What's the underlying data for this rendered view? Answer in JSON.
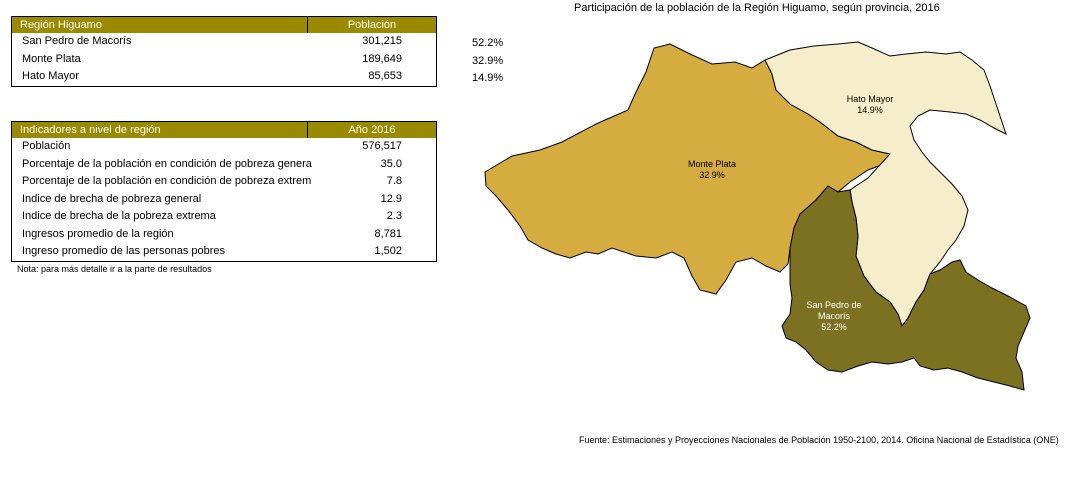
{
  "table1": {
    "header": {
      "col1": "Región Higuamo",
      "col2": "Población"
    },
    "rows": [
      {
        "label": "San Pedro de Macorís",
        "value": "301,215",
        "pct": "52.2%"
      },
      {
        "label": "Monte Plata",
        "value": "189,649",
        "pct": "32.9%"
      },
      {
        "label": "Hato Mayor",
        "value": "85,653",
        "pct": "14.9%"
      }
    ]
  },
  "table2": {
    "header": {
      "col1": "Indicadores a nivel de región",
      "col2": "Año 2016"
    },
    "rows": [
      {
        "label": "Población",
        "value": "576,517"
      },
      {
        "label": "Porcentaje de la población en condición de pobreza genera",
        "value": "35.0"
      },
      {
        "label": "Porcentaje de la población en condición de pobreza extrem",
        "value": "7.8"
      },
      {
        "label": "Indice de brecha de pobreza general",
        "value": "12.9"
      },
      {
        "label": "Indice de  brecha de la pobreza extrema",
        "value": "2.3"
      },
      {
        "label": "Ingresos promedio de la región",
        "value": "8,781"
      },
      {
        "label": "Ingreso promedio de las personas pobres",
        "value": "1,502"
      }
    ]
  },
  "note": "Nota: para más detalle ir a la parte de resultados",
  "map": {
    "title": "Participación de la población de la Región Higuamo, según provincia, 2016",
    "regions": [
      {
        "name": "Monte Plata",
        "pct": "32.9%",
        "color": "#d4ac40"
      },
      {
        "name": "Hato Mayor",
        "pct": "14.9%",
        "color": "#f6eecb"
      },
      {
        "name_line1": "San Pedro de",
        "name_line2": "Macorís",
        "pct": "52.2%",
        "color": "#7c7120"
      }
    ]
  },
  "source": "Fuente: Estimaciones y Proyecciones Nacionales de Población 1950-2100, 2014. Oficina Nacional de Estadística (ONE)",
  "colors": {
    "header_bg": "#9a8a00",
    "header_text": "#ffffff"
  }
}
